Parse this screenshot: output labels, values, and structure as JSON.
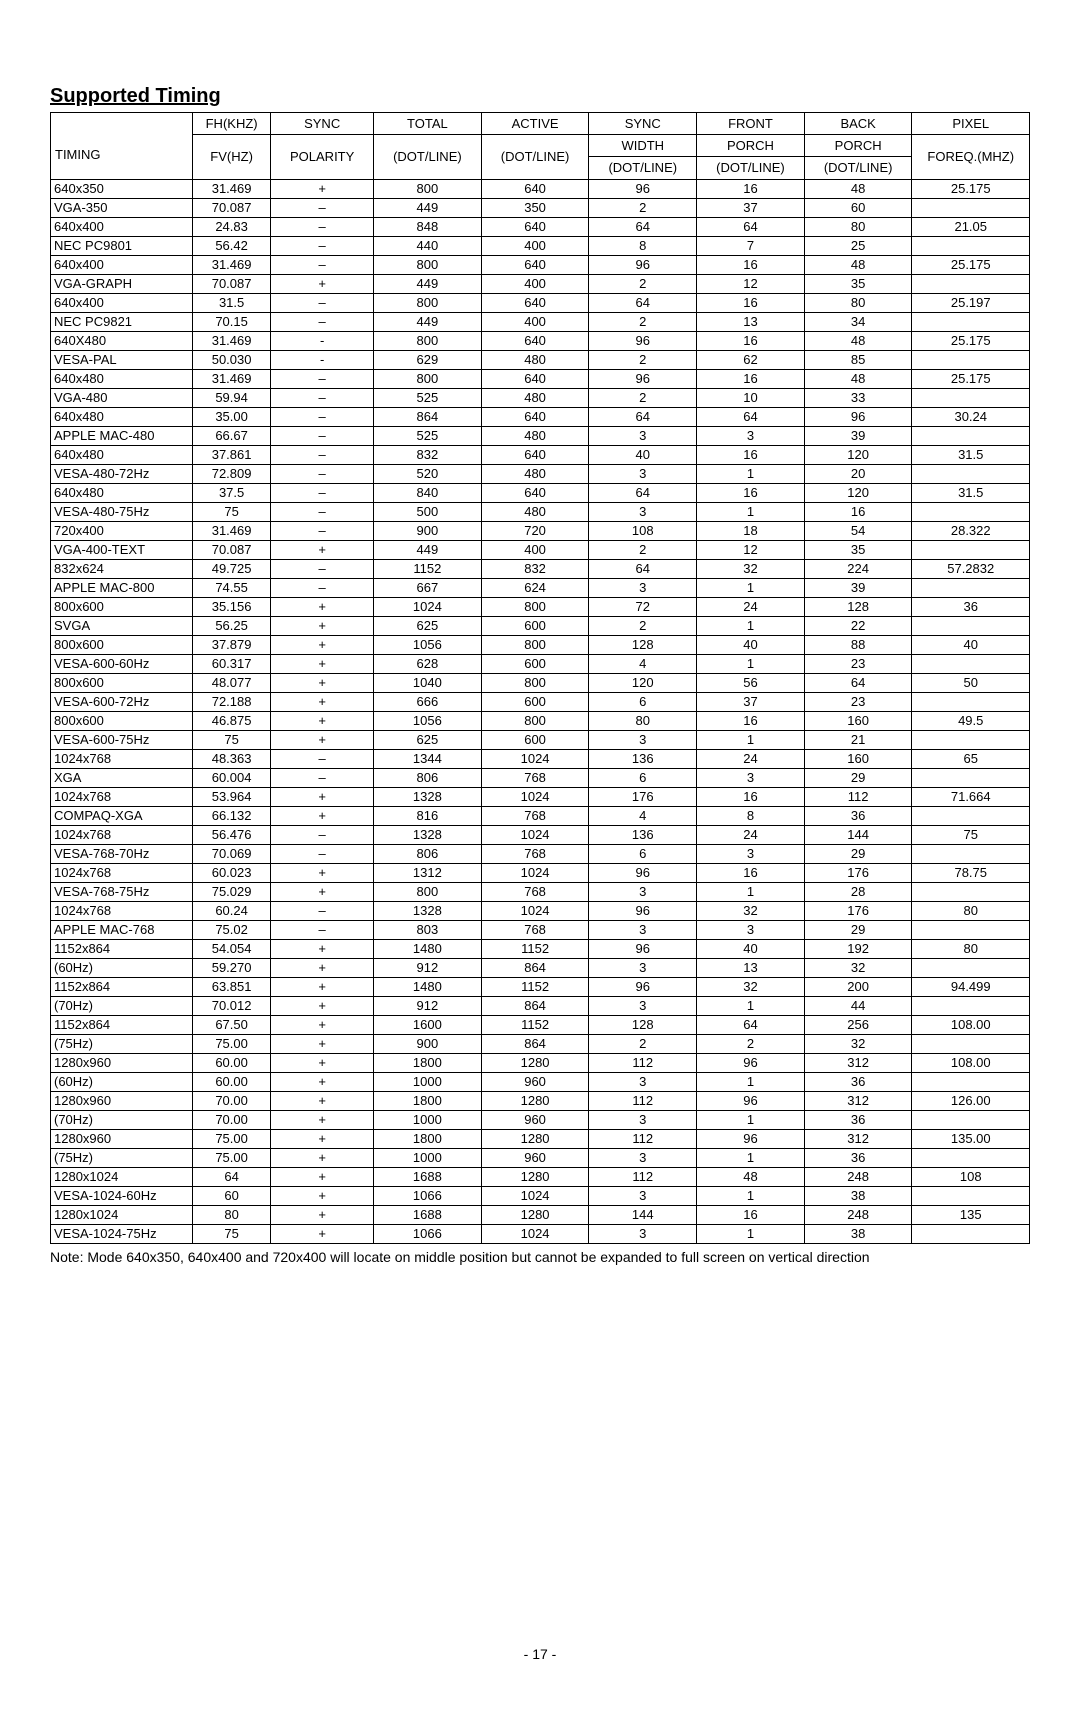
{
  "title": "Supported Timing",
  "note": "Note: Mode 640x350, 640x400 and 720x400 will locate on middle position but cannot be expanded to full screen on vertical direction",
  "pagenum": "- 17 -",
  "header": {
    "timing_label": "TIMING",
    "fh": "FH(KHZ)",
    "fv": "FV(HZ)",
    "sync": "SYNC",
    "polarity": "POLARITY",
    "total": "TOTAL",
    "dotline": "(DOT/LINE)",
    "active": "ACTIVE",
    "sync2": "SYNC",
    "width": "WIDTH",
    "front": "FRONT",
    "porch": "PORCH",
    "back": "BACK",
    "pixel": "PIXEL",
    "freq": "FOREQ.(MHZ)"
  },
  "rows": [
    [
      "640x350",
      "31.469",
      "+",
      "800",
      "640",
      "96",
      "16",
      "48",
      "25.175"
    ],
    [
      "VGA-350",
      "70.087",
      "–",
      "449",
      "350",
      "2",
      "37",
      "60",
      ""
    ],
    [
      "640x400",
      "24.83",
      "–",
      "848",
      "640",
      "64",
      "64",
      "80",
      "21.05"
    ],
    [
      "NEC PC9801",
      "56.42",
      "–",
      "440",
      "400",
      "8",
      "7",
      "25",
      ""
    ],
    [
      "640x400",
      "31.469",
      "–",
      "800",
      "640",
      "96",
      "16",
      "48",
      "25.175"
    ],
    [
      "VGA-GRAPH",
      "70.087",
      "+",
      "449",
      "400",
      "2",
      "12",
      "35",
      ""
    ],
    [
      "640x400",
      "31.5",
      "–",
      "800",
      "640",
      "64",
      "16",
      "80",
      "25.197"
    ],
    [
      "NEC PC9821",
      "70.15",
      "–",
      "449",
      "400",
      "2",
      "13",
      "34",
      ""
    ],
    [
      "640X480",
      "31.469",
      "-",
      "800",
      "640",
      "96",
      "16",
      "48",
      "25.175"
    ],
    [
      "VESA-PAL",
      "50.030",
      "-",
      "629",
      "480",
      "2",
      "62",
      "85",
      ""
    ],
    [
      "640x480",
      "31.469",
      "–",
      "800",
      "640",
      "96",
      "16",
      "48",
      "25.175"
    ],
    [
      "VGA-480",
      "59.94",
      "–",
      "525",
      "480",
      "2",
      "10",
      "33",
      ""
    ],
    [
      "640x480",
      "35.00",
      "–",
      "864",
      "640",
      "64",
      "64",
      "96",
      "30.24"
    ],
    [
      "APPLE MAC-480",
      "66.67",
      "–",
      "525",
      "480",
      "3",
      "3",
      "39",
      ""
    ],
    [
      "640x480",
      "37.861",
      "–",
      "832",
      "640",
      "40",
      "16",
      "120",
      "31.5"
    ],
    [
      "VESA-480-72Hz",
      "72.809",
      "–",
      "520",
      "480",
      "3",
      "1",
      "20",
      ""
    ],
    [
      "640x480",
      "37.5",
      "–",
      "840",
      "640",
      "64",
      "16",
      "120",
      "31.5"
    ],
    [
      "VESA-480-75Hz",
      "75",
      "–",
      "500",
      "480",
      "3",
      "1",
      "16",
      ""
    ],
    [
      "720x400",
      "31.469",
      "–",
      "900",
      "720",
      "108",
      "18",
      "54",
      "28.322"
    ],
    [
      "VGA-400-TEXT",
      "70.087",
      "+",
      "449",
      "400",
      "2",
      "12",
      "35",
      ""
    ],
    [
      "832x624",
      "49.725",
      "–",
      "1152",
      "832",
      "64",
      "32",
      "224",
      "57.2832"
    ],
    [
      "APPLE MAC-800",
      "74.55",
      "–",
      "667",
      "624",
      "3",
      "1",
      "39",
      ""
    ],
    [
      "800x600",
      "35.156",
      "+",
      "1024",
      "800",
      "72",
      "24",
      "128",
      "36"
    ],
    [
      "SVGA",
      "56.25",
      "+",
      "625",
      "600",
      "2",
      "1",
      "22",
      ""
    ],
    [
      "800x600",
      "37.879",
      "+",
      "1056",
      "800",
      "128",
      "40",
      "88",
      "40"
    ],
    [
      "VESA-600-60Hz",
      "60.317",
      "+",
      "628",
      "600",
      "4",
      "1",
      "23",
      ""
    ],
    [
      "800x600",
      "48.077",
      "+",
      "1040",
      "800",
      "120",
      "56",
      "64",
      "50"
    ],
    [
      "VESA-600-72Hz",
      "72.188",
      "+",
      "666",
      "600",
      "6",
      "37",
      "23",
      ""
    ],
    [
      "800x600",
      "46.875",
      "+",
      "1056",
      "800",
      "80",
      "16",
      "160",
      "49.5"
    ],
    [
      "VESA-600-75Hz",
      "75",
      "+",
      "625",
      "600",
      "3",
      "1",
      "21",
      ""
    ],
    [
      "1024x768",
      "48.363",
      "–",
      "1344",
      "1024",
      "136",
      "24",
      "160",
      "65"
    ],
    [
      "XGA",
      "60.004",
      "–",
      "806",
      "768",
      "6",
      "3",
      "29",
      ""
    ],
    [
      "1024x768",
      "53.964",
      "+",
      "1328",
      "1024",
      "176",
      "16",
      "112",
      "71.664"
    ],
    [
      "COMPAQ-XGA",
      "66.132",
      "+",
      "816",
      "768",
      "4",
      "8",
      "36",
      ""
    ],
    [
      "1024x768",
      "56.476",
      "–",
      "1328",
      "1024",
      "136",
      "24",
      "144",
      "75"
    ],
    [
      "VESA-768-70Hz",
      "70.069",
      "–",
      "806",
      "768",
      "6",
      "3",
      "29",
      ""
    ],
    [
      "1024x768",
      "60.023",
      "+",
      "1312",
      "1024",
      "96",
      "16",
      "176",
      "78.75"
    ],
    [
      "VESA-768-75Hz",
      "75.029",
      "+",
      "800",
      "768",
      "3",
      "1",
      "28",
      ""
    ],
    [
      "1024x768",
      "60.24",
      "–",
      "1328",
      "1024",
      "96",
      "32",
      "176",
      "80"
    ],
    [
      "APPLE MAC-768",
      "75.02",
      "–",
      "803",
      "768",
      "3",
      "3",
      "29",
      ""
    ],
    [
      "1152x864",
      "54.054",
      "+",
      "1480",
      "1152",
      "96",
      "40",
      "192",
      "80"
    ],
    [
      "(60Hz)",
      "59.270",
      "+",
      "912",
      "864",
      "3",
      "13",
      "32",
      ""
    ],
    [
      "1152x864",
      "63.851",
      "+",
      "1480",
      "1152",
      "96",
      "32",
      "200",
      "94.499"
    ],
    [
      "(70Hz)",
      "70.012",
      "+",
      "912",
      "864",
      "3",
      "1",
      "44",
      ""
    ],
    [
      "1152x864",
      "67.50",
      "+",
      "1600",
      "1152",
      "128",
      "64",
      "256",
      "108.00"
    ],
    [
      "(75Hz)",
      "75.00",
      "+",
      "900",
      "864",
      "2",
      "2",
      "32",
      ""
    ],
    [
      "1280x960",
      "60.00",
      "+",
      "1800",
      "1280",
      "112",
      "96",
      "312",
      "108.00"
    ],
    [
      "(60Hz)",
      "60.00",
      "+",
      "1000",
      "960",
      "3",
      "1",
      "36",
      ""
    ],
    [
      "1280x960",
      "70.00",
      "+",
      "1800",
      "1280",
      "112",
      "96",
      "312",
      "126.00"
    ],
    [
      "(70Hz)",
      "70.00",
      "+",
      "1000",
      "960",
      "3",
      "1",
      "36",
      ""
    ],
    [
      "1280x960",
      "75.00",
      "+",
      "1800",
      "1280",
      "112",
      "96",
      "312",
      "135.00"
    ],
    [
      "(75Hz)",
      "75.00",
      "+",
      "1000",
      "960",
      "3",
      "1",
      "36",
      ""
    ],
    [
      "1280x1024",
      "64",
      "+",
      "1688",
      "1280",
      "112",
      "48",
      "248",
      "108"
    ],
    [
      "VESA-1024-60Hz",
      "60",
      "+",
      "1066",
      "1024",
      "3",
      "1",
      "38",
      ""
    ],
    [
      "1280x1024",
      "80",
      "+",
      "1688",
      "1280",
      "144",
      "16",
      "248",
      "135"
    ],
    [
      "VESA-1024-75Hz",
      "75",
      "+",
      "1066",
      "1024",
      "3",
      "1",
      "38",
      ""
    ]
  ]
}
